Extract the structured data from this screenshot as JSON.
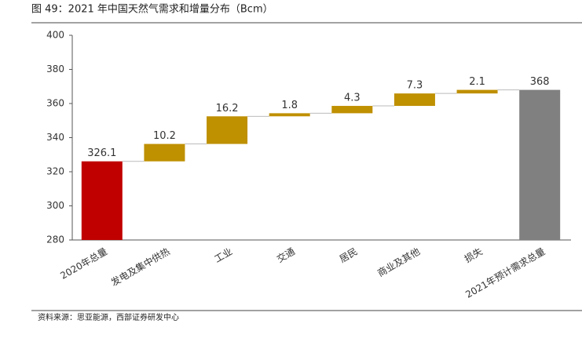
{
  "chart_data": {
    "type": "waterfall",
    "title": "图 49：2021 年中国天然气需求和增量分布（Bcm）",
    "categories": [
      "2020年总量",
      "发电及集中供热",
      "工业",
      "交通",
      "居民",
      "商业及其他",
      "损失",
      "2021年预计需求总量"
    ],
    "values": [
      326.1,
      10.2,
      16.2,
      1.8,
      4.3,
      7.3,
      2.1,
      368
    ],
    "colors": [
      "#c00000",
      "#bf9000",
      "#bf9000",
      "#bf9000",
      "#bf9000",
      "#bf9000",
      "#bf9000",
      "#808080"
    ],
    "ylim": [
      280,
      400
    ],
    "yticks": [
      280,
      300,
      320,
      340,
      360,
      380,
      400
    ],
    "source": "资料来源：思亚能源，西部证券研发中心"
  }
}
